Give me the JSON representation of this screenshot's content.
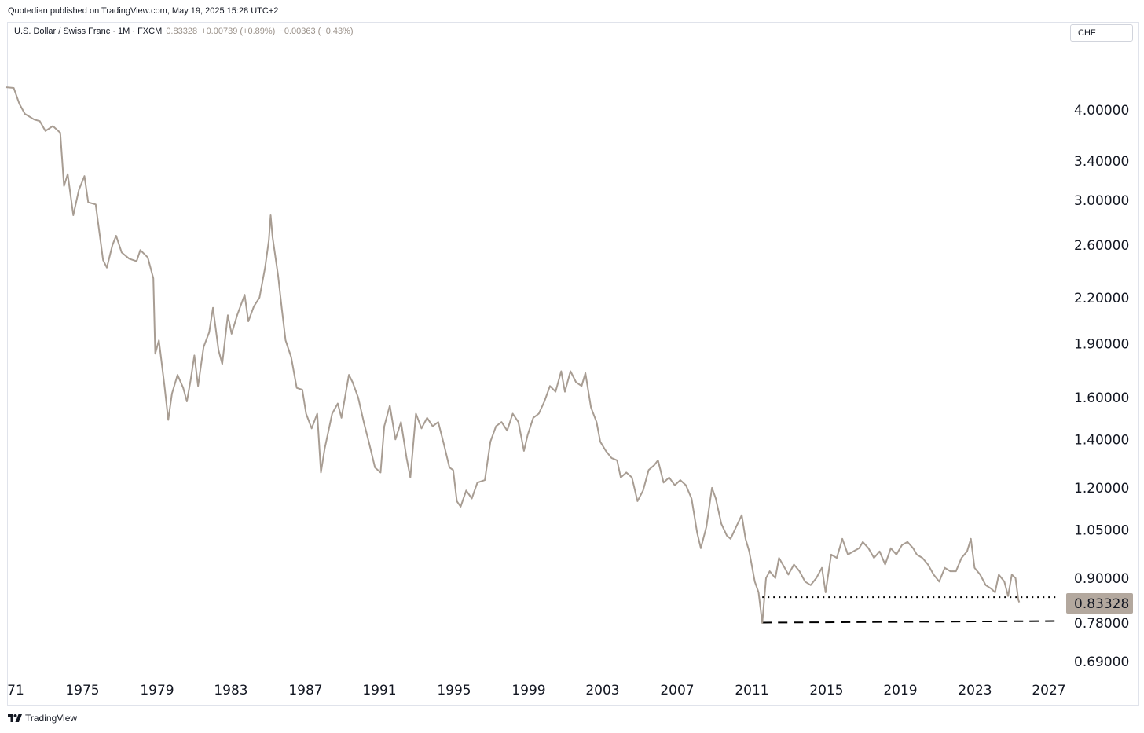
{
  "publisher_line": "Quotedian published on TradingView.com, May 19, 2025 15:28 UTC+2",
  "symbol": {
    "name": "U.S. Dollar / Swiss Franc · 1M · FXCM",
    "last": "0.83328",
    "change": "+0.00739 (+0.89%)",
    "change2": "−0.00363 (−0.43%)"
  },
  "currency_button": "CHF",
  "footer": {
    "brand": "TradingView",
    "logo_icon": "tradingview-logo-icon"
  },
  "colors": {
    "line": "#a89d93",
    "price_tag_bg": "#b3a89e",
    "support": "#000000"
  },
  "chart_data": {
    "type": "line",
    "title": "U.S. Dollar / Swiss Franc · 1M · FXCM",
    "series": [
      {
        "values_by_year": [
          [
            1971.0,
            4.3
          ],
          [
            1971.4,
            4.29
          ],
          [
            1971.7,
            4.08
          ],
          [
            1972.0,
            3.95
          ],
          [
            1972.5,
            3.88
          ],
          [
            1972.8,
            3.86
          ],
          [
            1973.1,
            3.74
          ],
          [
            1973.5,
            3.8
          ],
          [
            1973.9,
            3.72
          ],
          [
            1974.1,
            3.14
          ],
          [
            1974.3,
            3.26
          ],
          [
            1974.6,
            2.86
          ],
          [
            1974.9,
            3.1
          ],
          [
            1975.2,
            3.24
          ],
          [
            1975.4,
            2.98
          ],
          [
            1975.8,
            2.96
          ],
          [
            1976.2,
            2.48
          ],
          [
            1976.4,
            2.42
          ],
          [
            1976.7,
            2.6
          ],
          [
            1976.9,
            2.68
          ],
          [
            1977.2,
            2.54
          ],
          [
            1977.6,
            2.49
          ],
          [
            1978.0,
            2.47
          ],
          [
            1978.2,
            2.56
          ],
          [
            1978.6,
            2.5
          ],
          [
            1978.9,
            2.34
          ],
          [
            1979.0,
            1.84
          ],
          [
            1979.2,
            1.92
          ],
          [
            1979.5,
            1.66
          ],
          [
            1979.7,
            1.49
          ],
          [
            1979.9,
            1.62
          ],
          [
            1980.2,
            1.72
          ],
          [
            1980.5,
            1.65
          ],
          [
            1980.7,
            1.58
          ],
          [
            1980.9,
            1.69
          ],
          [
            1981.1,
            1.83
          ],
          [
            1981.3,
            1.66
          ],
          [
            1981.6,
            1.88
          ],
          [
            1981.9,
            1.97
          ],
          [
            1982.1,
            2.13
          ],
          [
            1982.4,
            1.86
          ],
          [
            1982.6,
            1.78
          ],
          [
            1982.9,
            2.08
          ],
          [
            1983.1,
            1.96
          ],
          [
            1983.4,
            2.08
          ],
          [
            1983.8,
            2.22
          ],
          [
            1984.0,
            2.04
          ],
          [
            1984.3,
            2.14
          ],
          [
            1984.6,
            2.2
          ],
          [
            1984.9,
            2.42
          ],
          [
            1985.1,
            2.64
          ],
          [
            1985.2,
            2.86
          ],
          [
            1985.3,
            2.67
          ],
          [
            1985.6,
            2.36
          ],
          [
            1985.8,
            2.12
          ],
          [
            1986.0,
            1.92
          ],
          [
            1986.3,
            1.82
          ],
          [
            1986.6,
            1.65
          ],
          [
            1986.9,
            1.64
          ],
          [
            1987.1,
            1.52
          ],
          [
            1987.4,
            1.45
          ],
          [
            1987.7,
            1.52
          ],
          [
            1987.9,
            1.26
          ],
          [
            1988.1,
            1.36
          ],
          [
            1988.5,
            1.52
          ],
          [
            1988.8,
            1.57
          ],
          [
            1989.0,
            1.5
          ],
          [
            1989.4,
            1.72
          ],
          [
            1989.6,
            1.68
          ],
          [
            1989.9,
            1.6
          ],
          [
            1990.2,
            1.48
          ],
          [
            1990.5,
            1.38
          ],
          [
            1990.8,
            1.28
          ],
          [
            1991.1,
            1.26
          ],
          [
            1991.3,
            1.46
          ],
          [
            1991.6,
            1.56
          ],
          [
            1991.9,
            1.4
          ],
          [
            1992.2,
            1.48
          ],
          [
            1992.5,
            1.32
          ],
          [
            1992.7,
            1.24
          ],
          [
            1993.0,
            1.52
          ],
          [
            1993.3,
            1.45
          ],
          [
            1993.6,
            1.5
          ],
          [
            1993.9,
            1.46
          ],
          [
            1994.2,
            1.48
          ],
          [
            1994.5,
            1.38
          ],
          [
            1994.8,
            1.28
          ],
          [
            1995.0,
            1.27
          ],
          [
            1995.2,
            1.15
          ],
          [
            1995.4,
            1.13
          ],
          [
            1995.7,
            1.19
          ],
          [
            1996.0,
            1.16
          ],
          [
            1996.3,
            1.22
          ],
          [
            1996.7,
            1.23
          ],
          [
            1997.0,
            1.39
          ],
          [
            1997.3,
            1.46
          ],
          [
            1997.6,
            1.48
          ],
          [
            1997.9,
            1.44
          ],
          [
            1998.2,
            1.52
          ],
          [
            1998.5,
            1.48
          ],
          [
            1998.8,
            1.35
          ],
          [
            1999.0,
            1.42
          ],
          [
            1999.3,
            1.5
          ],
          [
            1999.6,
            1.52
          ],
          [
            1999.9,
            1.58
          ],
          [
            2000.2,
            1.66
          ],
          [
            2000.5,
            1.63
          ],
          [
            2000.8,
            1.74
          ],
          [
            2001.0,
            1.63
          ],
          [
            2001.3,
            1.74
          ],
          [
            2001.6,
            1.68
          ],
          [
            2001.9,
            1.66
          ],
          [
            2002.1,
            1.73
          ],
          [
            2002.4,
            1.55
          ],
          [
            2002.7,
            1.48
          ],
          [
            2002.9,
            1.39
          ],
          [
            2003.2,
            1.35
          ],
          [
            2003.5,
            1.32
          ],
          [
            2003.8,
            1.31
          ],
          [
            2004.0,
            1.24
          ],
          [
            2004.3,
            1.26
          ],
          [
            2004.6,
            1.24
          ],
          [
            2004.9,
            1.15
          ],
          [
            2005.2,
            1.19
          ],
          [
            2005.5,
            1.27
          ],
          [
            2005.8,
            1.29
          ],
          [
            2006.0,
            1.31
          ],
          [
            2006.3,
            1.22
          ],
          [
            2006.6,
            1.24
          ],
          [
            2006.9,
            1.21
          ],
          [
            2007.2,
            1.23
          ],
          [
            2007.5,
            1.21
          ],
          [
            2007.8,
            1.16
          ],
          [
            2008.1,
            1.04
          ],
          [
            2008.3,
            0.99
          ],
          [
            2008.6,
            1.06
          ],
          [
            2008.9,
            1.2
          ],
          [
            2009.1,
            1.16
          ],
          [
            2009.4,
            1.07
          ],
          [
            2009.7,
            1.03
          ],
          [
            2009.9,
            1.02
          ],
          [
            2010.2,
            1.06
          ],
          [
            2010.5,
            1.1
          ],
          [
            2010.7,
            1.02
          ],
          [
            2010.9,
            0.98
          ],
          [
            2011.2,
            0.89
          ],
          [
            2011.4,
            0.86
          ],
          [
            2011.6,
            0.78
          ],
          [
            2011.8,
            0.9
          ],
          [
            2012.0,
            0.92
          ],
          [
            2012.3,
            0.9
          ],
          [
            2012.5,
            0.96
          ],
          [
            2012.8,
            0.93
          ],
          [
            2013.0,
            0.91
          ],
          [
            2013.3,
            0.94
          ],
          [
            2013.6,
            0.92
          ],
          [
            2013.9,
            0.89
          ],
          [
            2014.2,
            0.88
          ],
          [
            2014.5,
            0.9
          ],
          [
            2014.8,
            0.93
          ],
          [
            2015.0,
            0.86
          ],
          [
            2015.3,
            0.97
          ],
          [
            2015.6,
            0.96
          ],
          [
            2015.9,
            1.02
          ],
          [
            2016.2,
            0.97
          ],
          [
            2016.5,
            0.98
          ],
          [
            2016.8,
            0.99
          ],
          [
            2017.0,
            1.01
          ],
          [
            2017.3,
            0.99
          ],
          [
            2017.6,
            0.96
          ],
          [
            2017.9,
            0.98
          ],
          [
            2018.2,
            0.94
          ],
          [
            2018.5,
            0.99
          ],
          [
            2018.8,
            0.97
          ],
          [
            2019.1,
            1.0
          ],
          [
            2019.4,
            1.01
          ],
          [
            2019.7,
            0.99
          ],
          [
            2019.9,
            0.97
          ],
          [
            2020.2,
            0.96
          ],
          [
            2020.5,
            0.94
          ],
          [
            2020.8,
            0.91
          ],
          [
            2021.1,
            0.89
          ],
          [
            2021.4,
            0.93
          ],
          [
            2021.7,
            0.92
          ],
          [
            2022.0,
            0.92
          ],
          [
            2022.3,
            0.96
          ],
          [
            2022.6,
            0.98
          ],
          [
            2022.8,
            1.02
          ],
          [
            2023.0,
            0.93
          ],
          [
            2023.3,
            0.91
          ],
          [
            2023.6,
            0.88
          ],
          [
            2023.9,
            0.87
          ],
          [
            2024.1,
            0.86
          ],
          [
            2024.3,
            0.91
          ],
          [
            2024.6,
            0.89
          ],
          [
            2024.8,
            0.85
          ],
          [
            2025.0,
            0.91
          ],
          [
            2025.2,
            0.9
          ],
          [
            2025.35,
            0.84
          ],
          [
            2025.4,
            0.83328
          ]
        ]
      }
    ],
    "x_ticks": [
      "71",
      "1975",
      "1979",
      "1983",
      "1987",
      "1991",
      "1995",
      "1999",
      "2003",
      "2007",
      "2011",
      "2015",
      "2019",
      "2023",
      "2027"
    ],
    "y_ticks": [
      "4.00000",
      "3.40000",
      "3.00000",
      "2.60000",
      "2.20000",
      "1.90000",
      "1.60000",
      "1.40000",
      "1.20000",
      "1.05000",
      "0.90000",
      "0.78000",
      "0.69000"
    ],
    "y_scale": "log",
    "last_price_label": "0.83328",
    "reference_lines": [
      {
        "style": "dotted",
        "value": 0.847,
        "from_year": 2011.6
      },
      {
        "style": "dashed",
        "value": 0.781,
        "from_year": 2011.6
      }
    ],
    "grid": false,
    "legend": "none"
  }
}
